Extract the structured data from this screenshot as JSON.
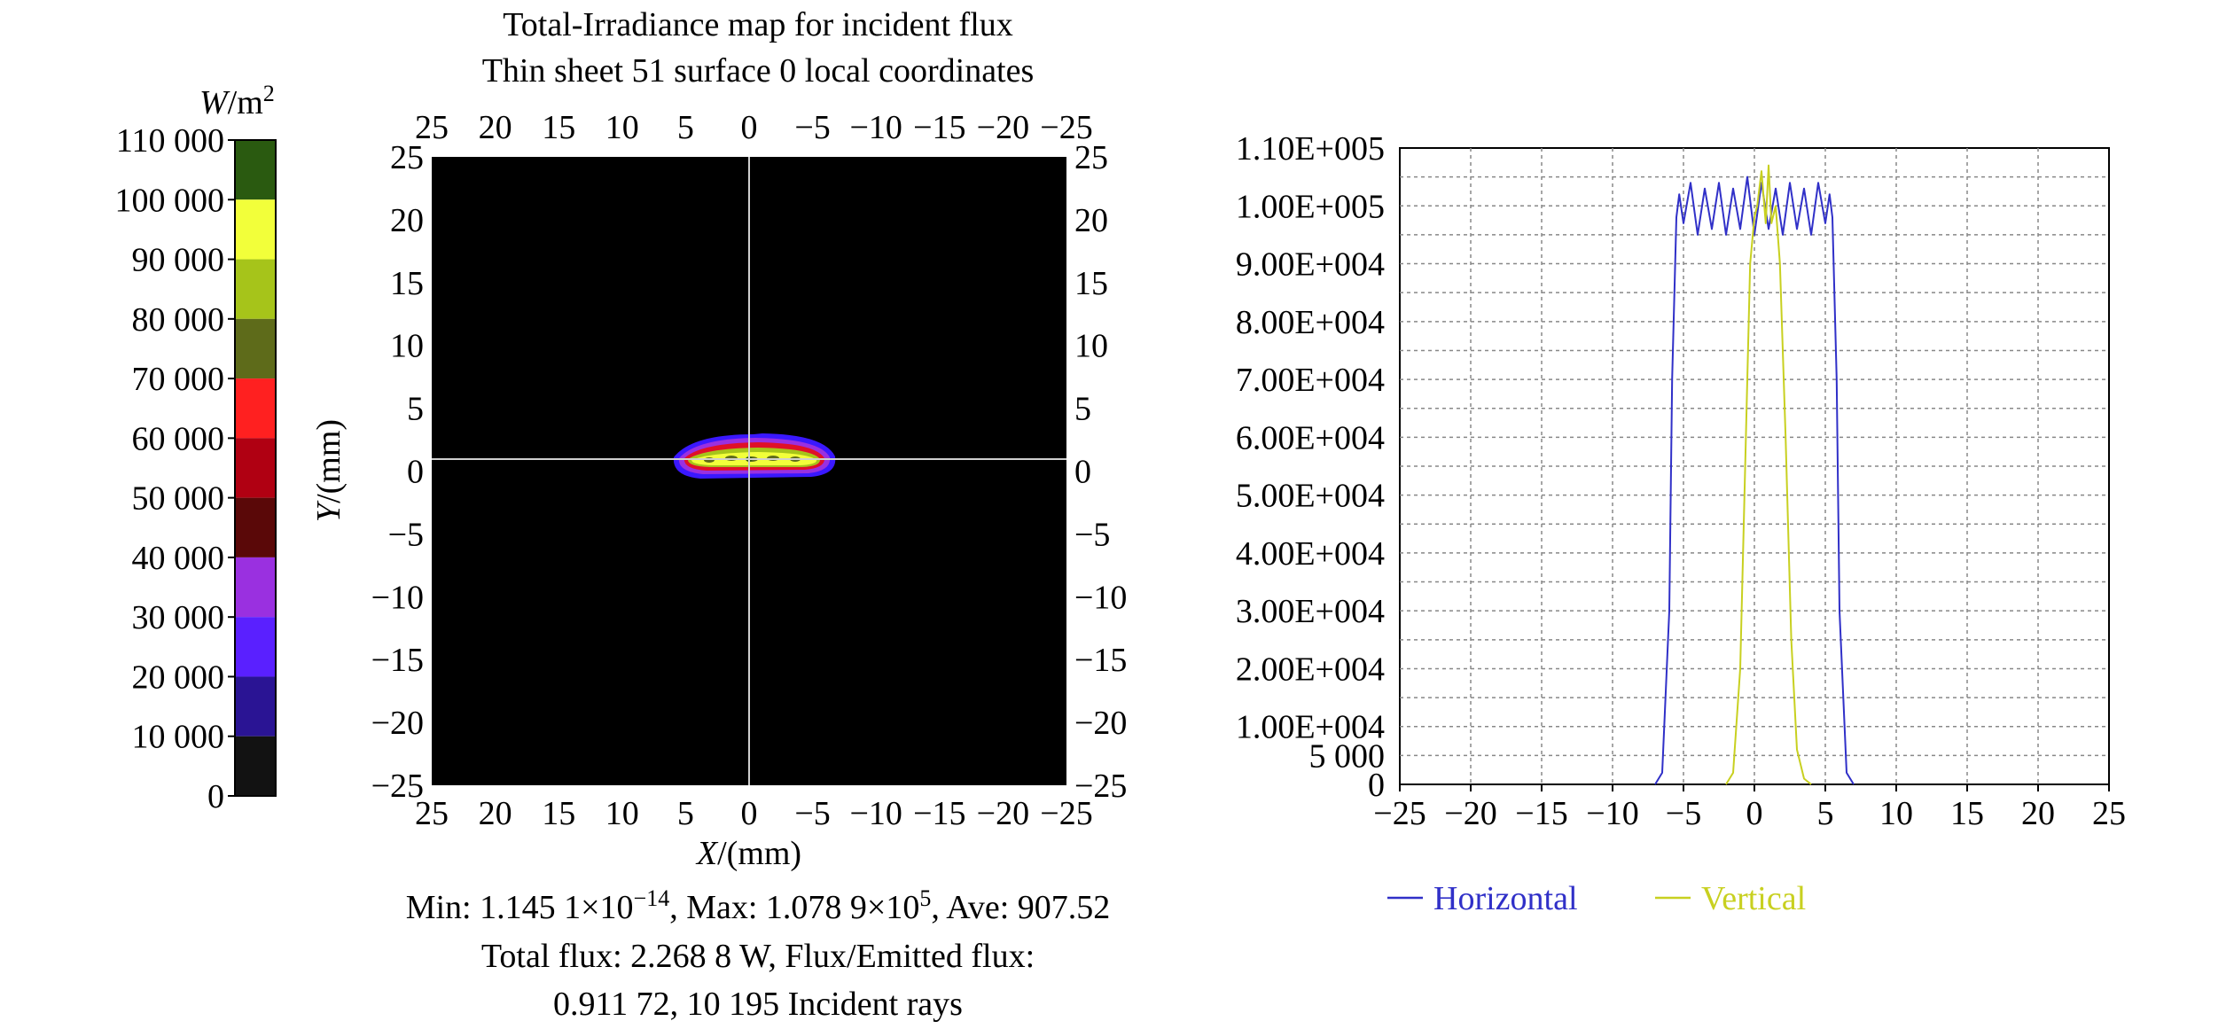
{
  "colorbar": {
    "unit_main": "W",
    "unit_rest": "/m",
    "unit_exp": "2",
    "labels": [
      "110 000",
      "100 000",
      "90 000",
      "80 000",
      "70 000",
      "60 000",
      "50 000",
      "40 000",
      "30 000",
      "20 000",
      "10 000",
      "0"
    ],
    "colors": [
      "#2a5a10",
      "#f2ff3a",
      "#a6c41a",
      "#5e6b1a",
      "#ff2020",
      "#b00012",
      "#5a0808",
      "#9a30e0",
      "#5a20ff",
      "#2a1494",
      "#121212"
    ]
  },
  "map": {
    "title_line1": "Total-Irradiance map for incident flux",
    "title_line2": "Thin sheet 51 surface 0 local coordinates",
    "x_ticks": [
      "25",
      "20",
      "15",
      "10",
      "5",
      "0",
      "−5",
      "−10",
      "−15",
      "−20",
      "−25"
    ],
    "y_ticks": [
      "25",
      "20",
      "15",
      "10",
      "5",
      "0",
      "−5",
      "−10",
      "−15",
      "−20",
      "−25"
    ],
    "xlabel_var": "X",
    "xlabel_unit": "/(mm)",
    "ylabel_var": "Y",
    "ylabel_unit": "/(mm)",
    "stats_line1_a": "Min: 1.145 1×10",
    "stats_line1_exp1": "−14",
    "stats_line1_b": ", Max: 1.078 9×10",
    "stats_line1_exp2": "5",
    "stats_line1_c": ", Ave: 907.52",
    "stats_line2": "Total flux: 2.268 8 W, Flux/Emitted flux:",
    "stats_line3": "0.911 72, 10 195 Incident rays"
  },
  "chart_data": {
    "type": "line",
    "x_ticks": [
      "−25",
      "−20",
      "−15",
      "−10",
      "−5",
      "0",
      "5",
      "10",
      "15",
      "20",
      "25"
    ],
    "y_ticks": [
      "1.10E+005",
      "1.00E+005",
      "9.00E+004",
      "8.00E+004",
      "7.00E+004",
      "6.00E+004",
      "5.00E+004",
      "4.00E+004",
      "3.00E+004",
      "2.00E+004",
      "1.00E+004",
      "5 000",
      "0"
    ],
    "xlim": [
      -25,
      25
    ],
    "ylim": [
      0,
      110000
    ],
    "grid": true,
    "legend_position": "bottom",
    "series": [
      {
        "name": "Horizontal",
        "color": "#3030c8",
        "x": [
          -7,
          -6.5,
          -6,
          -5.8,
          -5.5,
          -5.3,
          -5,
          -4.5,
          -4,
          -3.5,
          -3,
          -2.5,
          -2,
          -1.5,
          -1,
          -0.5,
          0,
          0.5,
          1,
          1.5,
          2,
          2.5,
          3,
          3.5,
          4,
          4.5,
          5,
          5.3,
          5.5,
          5.8,
          6,
          6.5,
          7
        ],
        "y": [
          0,
          2000,
          30000,
          70000,
          98000,
          102000,
          97000,
          104000,
          95000,
          103000,
          96000,
          104000,
          95000,
          103000,
          96000,
          105000,
          95000,
          104000,
          96000,
          103000,
          95000,
          104000,
          96000,
          103000,
          95000,
          104000,
          97000,
          102000,
          98000,
          70000,
          30000,
          2000,
          0
        ]
      },
      {
        "name": "Vertical",
        "color": "#c8d020",
        "x": [
          -2,
          -1.5,
          -1,
          -0.6,
          -0.3,
          0,
          0.2,
          0.5,
          0.8,
          1,
          1.2,
          1.5,
          1.8,
          2.2,
          2.6,
          3,
          3.5,
          4
        ],
        "y": [
          0,
          2000,
          20000,
          60000,
          90000,
          98000,
          100000,
          106000,
          97000,
          107000,
          97000,
          100000,
          90000,
          60000,
          25000,
          6000,
          1000,
          0
        ]
      }
    ]
  }
}
